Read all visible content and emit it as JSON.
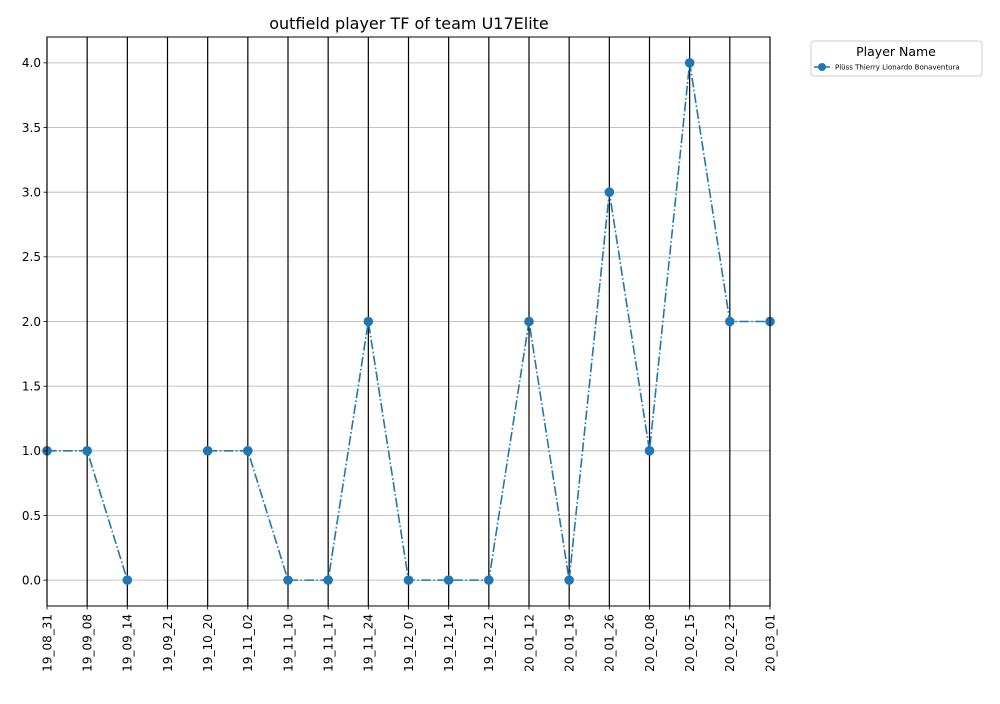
{
  "chart_data": {
    "type": "line",
    "title": "outfield player TF of team U17Elite",
    "xlabel": "",
    "ylabel": "",
    "categories": [
      "19_08_31",
      "19_09_08",
      "19_09_14",
      "19_09_21",
      "19_10_20",
      "19_11_02",
      "19_11_10",
      "19_11_17",
      "19_11_24",
      "19_12_07",
      "19_12_14",
      "19_12_21",
      "20_01_12",
      "20_01_19",
      "20_01_26",
      "20_02_08",
      "20_02_15",
      "20_02_23",
      "20_03_01"
    ],
    "yticks": [
      "0.0",
      "0.5",
      "1.0",
      "1.5",
      "2.0",
      "2.5",
      "3.0",
      "3.5",
      "4.0"
    ],
    "ylim": [
      -0.2,
      4.2
    ],
    "grid": "horizontal grid lines plus black vertical lines at each date",
    "legend": {
      "title": "Player Name",
      "placement": "outside top-right"
    },
    "series": [
      {
        "name": "Plüss Thierry Lionardo Bonaventura",
        "color": "#1f77b4",
        "line_style": "dash-dot",
        "marker": "circle",
        "values": [
          1,
          1,
          0,
          null,
          1,
          1,
          0,
          0,
          2,
          0,
          0,
          0,
          2,
          0,
          3,
          1,
          4,
          2,
          2
        ]
      }
    ]
  }
}
